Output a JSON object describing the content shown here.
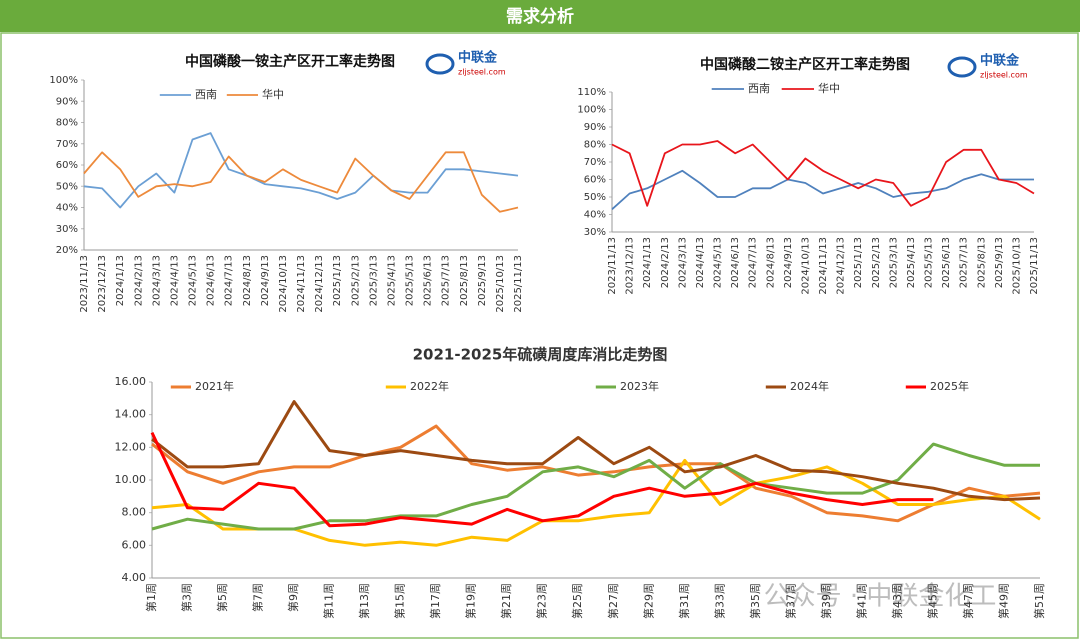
{
  "header": {
    "title": "需求分析"
  },
  "logos": [
    {
      "name": "中联金",
      "url": "zljsteel.com"
    },
    {
      "name": "中联金",
      "url": "zljsteel.com"
    }
  ],
  "watermark": "公众号 · 中联金化工",
  "chart_data": [
    {
      "type": "line",
      "title": "中国磷酸一铵主产区开工率走势图",
      "categories": [
        "2023/11/13",
        "2023/12/13",
        "2024/1/13",
        "2024/2/13",
        "2024/3/13",
        "2024/4/13",
        "2024/5/13",
        "2024/6/13",
        "2024/7/13",
        "2024/8/13",
        "2024/9/13",
        "2024/10/13",
        "2024/11/13",
        "2024/12/13",
        "2025/1/13",
        "2025/2/13",
        "2025/3/13",
        "2025/4/13",
        "2025/5/13",
        "2025/6/13",
        "2025/7/13",
        "2025/8/13",
        "2025/9/13",
        "2025/10/13",
        "2025/11/13"
      ],
      "series": [
        {
          "name": "西南",
          "color": "#6b9fd4",
          "values": [
            50,
            49,
            40,
            50,
            56,
            47,
            72,
            75,
            58,
            55,
            51,
            50,
            49,
            47,
            44,
            47,
            55,
            48,
            47,
            47,
            58,
            58,
            57,
            56,
            55
          ]
        },
        {
          "name": "华中",
          "color": "#ed8a3b",
          "values": [
            56,
            66,
            58,
            45,
            50,
            51,
            50,
            52,
            64,
            55,
            52,
            58,
            53,
            50,
            47,
            63,
            55,
            48,
            44,
            55,
            66,
            66,
            46,
            38,
            40
          ]
        }
      ],
      "ylim": [
        20,
        100
      ],
      "yticks": [
        {
          "value": 20,
          "label": "20%"
        },
        {
          "value": 30,
          "label": "30%"
        },
        {
          "value": 40,
          "label": "40%"
        },
        {
          "value": 50,
          "label": "50%"
        },
        {
          "value": 60,
          "label": "60%"
        },
        {
          "value": 70,
          "label": "70%"
        },
        {
          "value": 80,
          "label": "80%"
        },
        {
          "value": 90,
          "label": "90%"
        },
        {
          "value": 100,
          "label": "100%"
        }
      ],
      "grid": false
    },
    {
      "type": "line",
      "title": "中国磷酸二铵主产区开工率走势图",
      "categories": [
        "2023/11/13",
        "2023/12/13",
        "2024/1/13",
        "2024/2/13",
        "2024/3/13",
        "2024/4/13",
        "2024/5/13",
        "2024/6/13",
        "2024/7/13",
        "2024/8/13",
        "2024/9/13",
        "2024/10/13",
        "2024/11/13",
        "2024/12/13",
        "2025/1/13",
        "2025/2/13",
        "2025/3/13",
        "2025/4/13",
        "2025/5/13",
        "2025/6/13",
        "2025/7/13",
        "2025/8/13",
        "2025/9/13",
        "2025/10/13",
        "2025/11/13"
      ],
      "series": [
        {
          "name": "西南",
          "color": "#4f81bd",
          "values": [
            43,
            52,
            55,
            60,
            65,
            58,
            50,
            50,
            55,
            55,
            60,
            58,
            52,
            55,
            58,
            55,
            50,
            52,
            53,
            55,
            60,
            63,
            60,
            60,
            60
          ]
        },
        {
          "name": "华中",
          "color": "#e8151b",
          "values": [
            80,
            75,
            45,
            75,
            80,
            80,
            82,
            75,
            80,
            70,
            60,
            72,
            65,
            60,
            55,
            60,
            58,
            45,
            50,
            70,
            77,
            77,
            60,
            58,
            52
          ]
        }
      ],
      "ylim": [
        30,
        110
      ],
      "yticks": [
        {
          "value": 30,
          "label": "30%"
        },
        {
          "value": 40,
          "label": "40%"
        },
        {
          "value": 50,
          "label": "50%"
        },
        {
          "value": 60,
          "label": "60%"
        },
        {
          "value": 70,
          "label": "70%"
        },
        {
          "value": 80,
          "label": "80%"
        },
        {
          "value": 90,
          "label": "90%"
        },
        {
          "value": 100,
          "label": "100%"
        },
        {
          "value": 110,
          "label": "110%"
        }
      ],
      "grid": false
    },
    {
      "type": "line",
      "title": "2021-2025年硫磺周度库消比走势图",
      "categories": [
        "第1周",
        "第3周",
        "第5周",
        "第7周",
        "第9周",
        "第11周",
        "第13周",
        "第15周",
        "第17周",
        "第19周",
        "第21周",
        "第23周",
        "第25周",
        "第27周",
        "第29周",
        "第31周",
        "第33周",
        "第35周",
        "第37周",
        "第39周",
        "第41周",
        "第43周",
        "第45周",
        "第47周",
        "第49周",
        "第51周"
      ],
      "series": [
        {
          "name": "2021年",
          "color": "#ed7d31",
          "values": [
            12.2,
            10.5,
            9.8,
            10.5,
            10.8,
            10.8,
            11.5,
            12.0,
            13.3,
            11.0,
            10.6,
            10.8,
            10.3,
            10.5,
            10.8,
            11.0,
            11.0,
            9.5,
            9.0,
            8.0,
            7.8,
            7.5,
            8.5,
            9.5,
            9.0,
            9.2
          ]
        },
        {
          "name": "2022年",
          "color": "#ffc000",
          "values": [
            8.3,
            8.5,
            7.0,
            7.0,
            7.0,
            6.3,
            6.0,
            6.2,
            6.0,
            6.5,
            6.3,
            7.5,
            7.5,
            7.8,
            8.0,
            11.2,
            8.5,
            9.8,
            10.2,
            10.8,
            9.8,
            8.5,
            8.5,
            8.8,
            9.0,
            7.6
          ]
        },
        {
          "name": "2023年",
          "color": "#70ad47",
          "values": [
            7.0,
            7.6,
            7.3,
            7.0,
            7.0,
            7.5,
            7.5,
            7.8,
            7.8,
            8.5,
            9.0,
            10.5,
            10.8,
            10.2,
            11.2,
            9.5,
            11.0,
            9.8,
            9.5,
            9.2,
            9.2,
            10.0,
            12.2,
            11.5,
            10.9,
            10.9
          ]
        },
        {
          "name": "2024年",
          "color": "#9c4a12",
          "values": [
            12.5,
            10.8,
            10.8,
            11.0,
            14.8,
            11.8,
            11.5,
            11.8,
            11.5,
            11.2,
            11.0,
            11.0,
            12.6,
            11.0,
            12.0,
            10.5,
            10.8,
            11.5,
            10.6,
            10.5,
            10.2,
            9.8,
            9.5,
            9.0,
            8.8,
            8.9
          ]
        },
        {
          "name": "2025年",
          "color": "#ff0000",
          "values": [
            12.9,
            8.3,
            8.2,
            9.8,
            9.5,
            7.2,
            7.3,
            7.7,
            7.5,
            7.3,
            8.2,
            7.5,
            7.8,
            9.0,
            9.5,
            9.0,
            9.2,
            9.8,
            9.2,
            8.8,
            8.5,
            8.8,
            8.8,
            null,
            null,
            null
          ]
        }
      ],
      "ylim": [
        4,
        16
      ],
      "yticks": [
        {
          "value": 4,
          "label": "4.00"
        },
        {
          "value": 6,
          "label": "6.00"
        },
        {
          "value": 8,
          "label": "8.00"
        },
        {
          "value": 10,
          "label": "10.00"
        },
        {
          "value": 12,
          "label": "12.00"
        },
        {
          "value": 14,
          "label": "14.00"
        },
        {
          "value": 16,
          "label": "16.00"
        }
      ],
      "grid": false
    }
  ]
}
